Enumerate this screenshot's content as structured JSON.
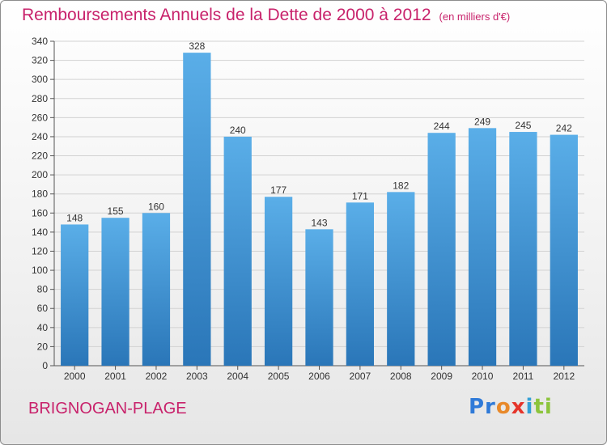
{
  "title": "Remboursements Annuels de la Dette de 2000 à 2012",
  "unit": "(en milliers d'€)",
  "commune": "BRIGNOGAN-PLAGE",
  "logo": {
    "p": "Pr",
    "o": "o",
    "x": "x",
    "i": "i",
    "ti": "ti"
  },
  "colors": {
    "title": "#c8226b",
    "bar_top": "#5aaee8",
    "bar_bottom": "#2a76b8"
  },
  "chart_data": {
    "type": "bar",
    "categories": [
      "2000",
      "2001",
      "2002",
      "2003",
      "2004",
      "2005",
      "2006",
      "2007",
      "2008",
      "2009",
      "2010",
      "2011",
      "2012"
    ],
    "values": [
      148,
      155,
      160,
      328,
      240,
      177,
      143,
      171,
      182,
      244,
      249,
      245,
      242
    ],
    "ylim": [
      0,
      340
    ],
    "yticks": [
      0,
      20,
      40,
      60,
      80,
      100,
      120,
      140,
      160,
      180,
      200,
      220,
      240,
      260,
      280,
      300,
      320,
      340
    ],
    "grid": true
  }
}
